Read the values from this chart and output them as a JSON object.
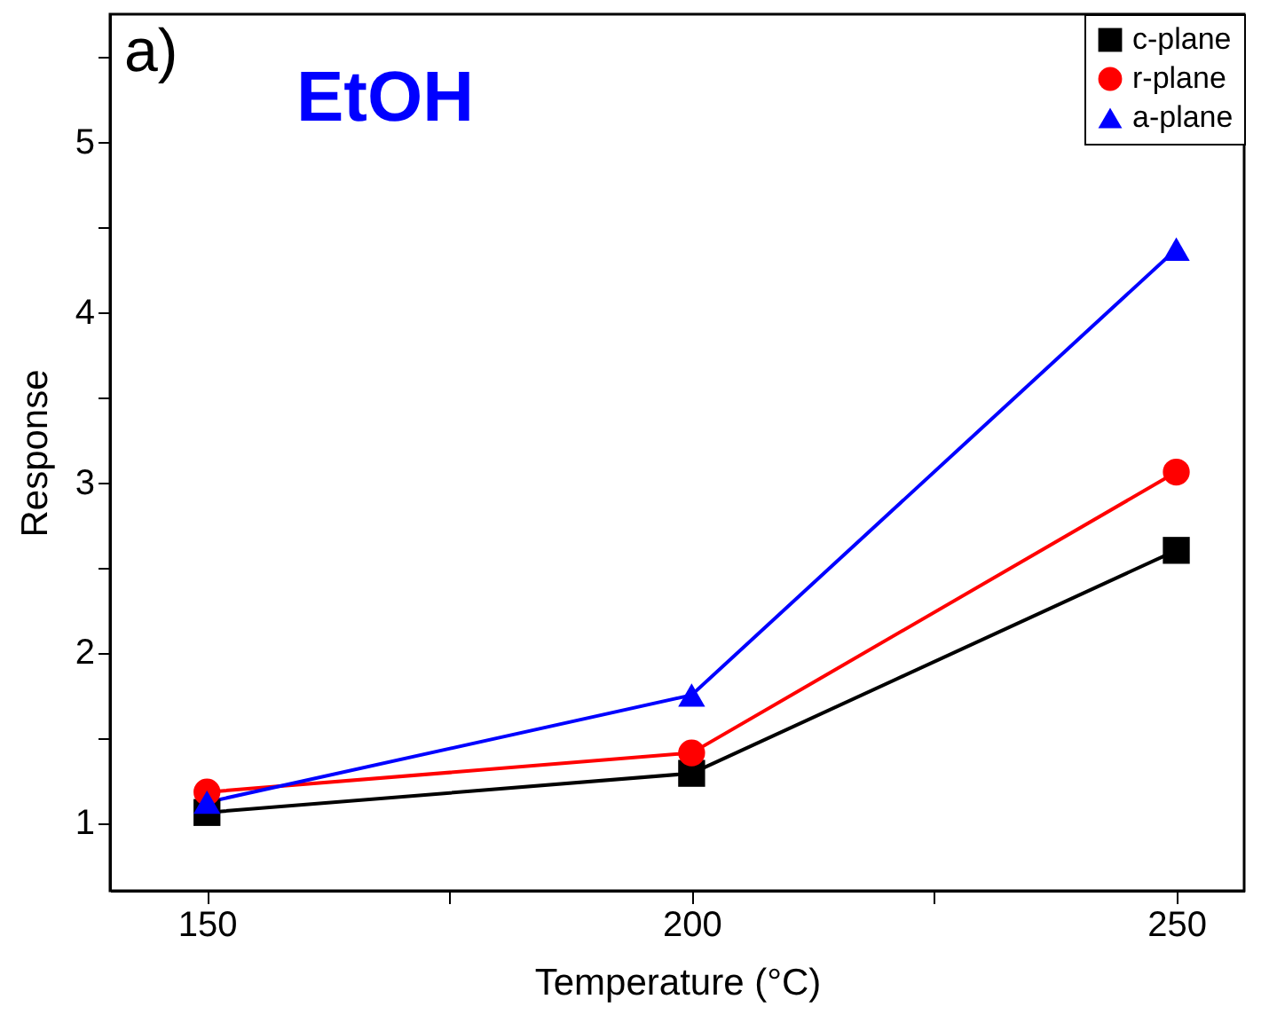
{
  "chart_data": {
    "type": "line",
    "xlabel": "Temperature (°C)",
    "ylabel": "Response",
    "annotations": [
      "a)",
      "EtOH"
    ],
    "x": [
      150,
      200,
      250
    ],
    "series": [
      {
        "name": "c-plane",
        "color": "#000000",
        "marker": "square",
        "values": [
          1.06,
          1.29,
          2.6
        ]
      },
      {
        "name": "r-plane",
        "color": "#ff0000",
        "marker": "circle",
        "values": [
          1.18,
          1.41,
          3.06
        ]
      },
      {
        "name": "a-plane",
        "color": "#0000ff",
        "marker": "triangle",
        "values": [
          1.12,
          1.75,
          4.37
        ]
      }
    ],
    "xlim": [
      140,
      257
    ],
    "xticks": [
      150,
      {
        "value": 175,
        "label": null
      },
      200,
      {
        "value": 225,
        "label": null
      },
      250
    ],
    "ylim": [
      0.6,
      5.75
    ],
    "yticks": [
      1,
      {
        "value": 1.5,
        "label": null
      },
      2,
      {
        "value": 2.5,
        "label": null
      },
      3,
      {
        "value": 3.5,
        "label": null
      },
      4,
      {
        "value": 4.5,
        "label": null
      },
      5,
      {
        "value": 5.5,
        "label": null
      }
    ],
    "grid": false,
    "legend": "top right",
    "line_style": "solid"
  }
}
